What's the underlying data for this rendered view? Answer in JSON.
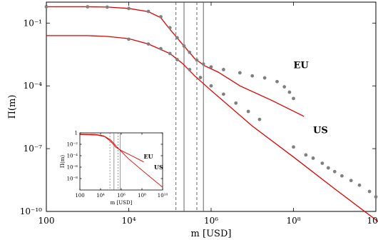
{
  "chart_data": [
    {
      "type": "line+scatter",
      "xlabel": "m [USD]",
      "ylabel": "Π(m)",
      "x_scale": "log",
      "y_scale": "log",
      "xlim": [
        100,
        10000000000
      ],
      "ylim": [
        1e-10,
        1
      ],
      "grid": false,
      "x_ticks": [
        {
          "value": 100,
          "label": "100"
        },
        {
          "value": 10000,
          "label": "10⁴"
        },
        {
          "value": 1000000,
          "label": "10⁶"
        },
        {
          "value": 100000000,
          "label": "10⁸"
        },
        {
          "value": 10000000000,
          "label": "10¹⁰"
        }
      ],
      "y_ticks": [
        {
          "value": 1e-10,
          "label": "10⁻¹⁰"
        },
        {
          "value": 1e-07,
          "label": "10⁻⁷"
        },
        {
          "value": 0.0001,
          "label": "10⁻⁴"
        },
        {
          "value": 0.1,
          "label": "10⁻¹"
        }
      ],
      "vertical_lines": [
        {
          "x": 140000,
          "style": "dashed"
        },
        {
          "x": 220000,
          "style": "solid"
        },
        {
          "x": 450000,
          "style": "dashed"
        },
        {
          "x": 650000,
          "style": "solid"
        }
      ],
      "series": [
        {
          "name": "EU",
          "color": "#e00000",
          "kind": "line",
          "points": [
            [
              100,
              0.6
            ],
            [
              1000,
              0.6
            ],
            [
              3000,
              0.58
            ],
            [
              10000,
              0.5
            ],
            [
              30000,
              0.35
            ],
            [
              60000,
              0.18
            ],
            [
              100000,
              0.05
            ],
            [
              200000,
              0.01
            ],
            [
              400000,
              0.002
            ],
            [
              700000,
              0.0009
            ],
            [
              1500000,
              0.00045
            ],
            [
              5000000,
              0.0001
            ],
            [
              30000000,
              2e-05
            ],
            [
              180000000,
              3.5e-06
            ]
          ]
        },
        {
          "kind": "scatter",
          "color": "#808080",
          "points": [
            [
              100,
              0.6
            ],
            [
              1000,
              0.6
            ],
            [
              3000,
              0.58
            ],
            [
              10000,
              0.5
            ],
            [
              30000,
              0.36
            ],
            [
              60000,
              0.2
            ],
            [
              100000,
              0.06
            ],
            [
              150000,
              0.02
            ],
            [
              220000,
              0.008
            ],
            [
              300000,
              0.004
            ],
            [
              450000,
              0.0017
            ],
            [
              650000,
              0.0011
            ],
            [
              1000000,
              0.0008
            ],
            [
              2000000,
              0.0006
            ],
            [
              5000000,
              0.00042
            ],
            [
              10000000,
              0.0003
            ],
            [
              20000000,
              0.00024
            ],
            [
              40000000,
              0.00016
            ],
            [
              60000000,
              9e-05
            ],
            [
              80000000,
              5e-05
            ],
            [
              100000000,
              2.5e-05
            ]
          ]
        },
        {
          "name": "US",
          "color": "#e00000",
          "kind": "line",
          "points": [
            [
              100,
              0.025
            ],
            [
              1000,
              0.025
            ],
            [
              3000,
              0.023
            ],
            [
              10000,
              0.018
            ],
            [
              30000,
              0.01
            ],
            [
              100000,
              0.0035
            ],
            [
              200000,
              0.0012
            ],
            [
              400000,
              0.0003
            ],
            [
              1000000,
              6e-05
            ],
            [
              10000000,
              1.2e-06
            ],
            [
              100000000,
              4e-08
            ],
            [
              1000000000,
              1.2e-09
            ],
            [
              12000000000,
              3e-11
            ]
          ]
        },
        {
          "kind": "scatter",
          "color": "#808080",
          "points": [
            [
              10000,
              0.017
            ],
            [
              30000,
              0.01
            ],
            [
              60000,
              0.006
            ],
            [
              100000,
              0.0035
            ],
            [
              150000,
              0.0018
            ],
            [
              300000,
              0.0006
            ],
            [
              550000,
              0.00025
            ],
            [
              1000000,
              0.0001
            ],
            [
              2000000,
              4e-05
            ],
            [
              4000000,
              1.5e-05
            ],
            [
              8000000,
              6e-06
            ],
            [
              15000000,
              2.5e-06
            ],
            [
              100000000,
              1.2e-07
            ],
            [
              200000000,
              5e-08
            ],
            [
              300000000,
              3.5e-08
            ],
            [
              500000000,
              2e-08
            ],
            [
              700000000,
              1.2e-08
            ],
            [
              1000000000,
              8e-09
            ],
            [
              1500000000,
              5e-09
            ],
            [
              2500000000,
              3e-09
            ],
            [
              4000000000,
              1.8e-09
            ],
            [
              7000000000,
              9e-10
            ],
            [
              10000000000,
              5e-10
            ]
          ]
        }
      ],
      "annotations": [
        {
          "text": "EU",
          "x": 100000000,
          "y": 0.0007
        },
        {
          "text": "US",
          "x": 300000000,
          "y": 5.5e-07
        }
      ]
    },
    {
      "type": "line",
      "xlabel": "m [USD]",
      "ylabel": "Π(m)",
      "x_scale": "log",
      "y_scale": "log",
      "xlim": [
        100,
        10000000000
      ],
      "ylim": [
        1e-10,
        1
      ],
      "x_ticks": [
        {
          "value": 100,
          "label": "100"
        },
        {
          "value": 10000,
          "label": "10⁴"
        },
        {
          "value": 1000000,
          "label": "10⁶"
        },
        {
          "value": 100000000,
          "label": "10⁸"
        },
        {
          "value": 10000000000,
          "label": "10¹⁰"
        }
      ],
      "y_ticks": [
        {
          "value": 1,
          "label": "1"
        },
        {
          "value": 0.01,
          "label": "10⁻²"
        },
        {
          "value": 0.0001,
          "label": "10⁻⁴"
        },
        {
          "value": 1e-06,
          "label": "10⁻⁶"
        },
        {
          "value": 1e-08,
          "label": "10⁻⁸"
        }
      ],
      "vertical_lines": [
        {
          "x": 80000,
          "style": "dashed"
        },
        {
          "x": 200000,
          "style": "solid"
        },
        {
          "x": 500000,
          "style": "dashed"
        },
        {
          "x": 800000,
          "style": "solid"
        }
      ],
      "series": [
        {
          "name": "EU",
          "color": "#e00000",
          "points": [
            [
              100,
              0.6
            ],
            [
              3000,
              0.55
            ],
            [
              20000,
              0.3
            ],
            [
              100000,
              0.03
            ],
            [
              300000,
              0.003
            ],
            [
              1000000,
              0.0008
            ],
            [
              10000000,
              0.0001
            ],
            [
              150000000,
              8e-06
            ]
          ]
        },
        {
          "name": "US",
          "color": "#e00000",
          "points": [
            [
              100,
              0.5
            ],
            [
              5000,
              0.4
            ],
            [
              30000,
              0.2
            ],
            [
              100000,
              0.05
            ],
            [
              500000,
              0.002
            ],
            [
              5000000,
              3e-05
            ],
            [
              100000000,
              3e-07
            ],
            [
              10000000000,
              3e-10
            ]
          ]
        }
      ],
      "annotations": [
        {
          "text": "EU",
          "x": 150000000,
          "y": 3e-05
        },
        {
          "text": "US",
          "x": 1500000000,
          "y": 4e-07
        }
      ]
    }
  ]
}
